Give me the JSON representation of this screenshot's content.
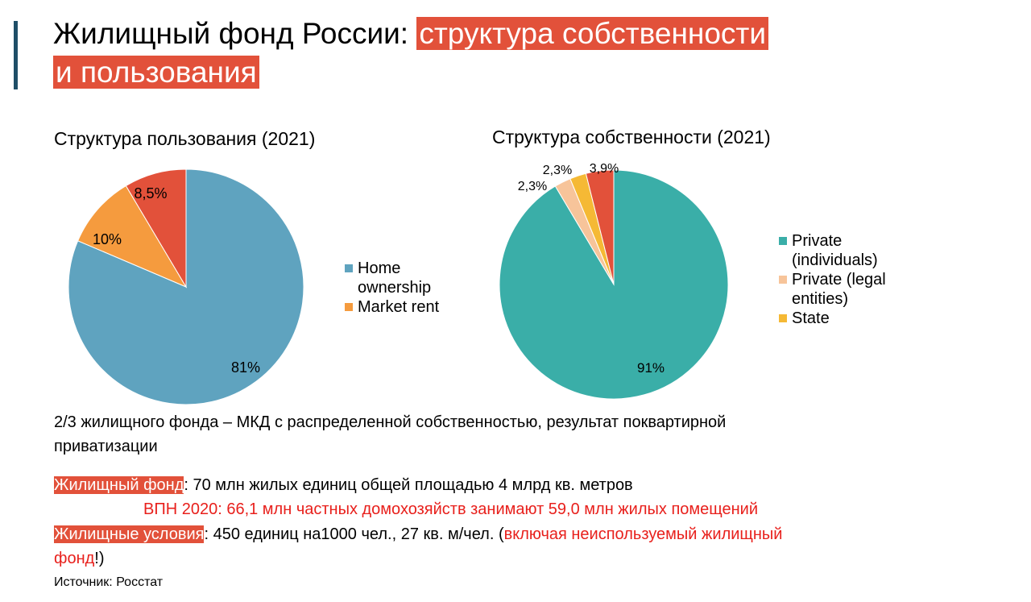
{
  "header": {
    "title_plain": "Жилищный фонд России: ",
    "title_highlight_1": "структура собственности",
    "title_highlight_2": "и пользования"
  },
  "colors": {
    "accent_bar": "#1f4e67",
    "highlight": "#e2513a",
    "red_text": "#e8201c"
  },
  "chart_data": [
    {
      "type": "pie",
      "title": "Структура пользования (2021)",
      "slices": [
        {
          "name": "Home ownership",
          "value": 81,
          "label": "81%",
          "color": "#5fa3bf"
        },
        {
          "name": "Market rent",
          "value": 10,
          "label": "10%",
          "color": "#f59b3e"
        },
        {
          "name": "",
          "value": 8.5,
          "label": "8,5%",
          "color": "#e2513a"
        }
      ],
      "legend": [
        "Home ownership",
        "Market rent"
      ],
      "legend_placement": "right"
    },
    {
      "type": "pie",
      "title": "Структура собственности (2021)",
      "slices": [
        {
          "name": "Private (individuals)",
          "value": 91,
          "label": "91%",
          "color": "#3aaea8"
        },
        {
          "name": "Private (legal entities)",
          "value": 2.3,
          "label": "2,3%",
          "color": "#f7c49a"
        },
        {
          "name": "State",
          "value": 2.3,
          "label": "2,3%",
          "color": "#f5b935"
        },
        {
          "name": "",
          "value": 3.9,
          "label": "3,9%",
          "color": "#e2513a"
        }
      ],
      "legend": [
        "Private (individuals)",
        "Private (legal entities)",
        "State"
      ],
      "legend_placement": "right"
    }
  ],
  "legend1": {
    "items": [
      {
        "line1": "Home",
        "line2": "ownership",
        "color": "#5fa3bf"
      },
      {
        "line1": "Market rent",
        "line2": "",
        "color": "#f59b3e"
      }
    ]
  },
  "legend2": {
    "items": [
      {
        "line1": "Private",
        "line2": "(individuals)",
        "color": "#3aaea8"
      },
      {
        "line1": "Private (legal",
        "line2": "entities)",
        "color": "#f7c49a"
      },
      {
        "line1": "State",
        "line2": "",
        "color": "#f5b935"
      }
    ]
  },
  "body": {
    "summary_line1": "2/3 жилищного фонда – МКД с распределенной собственностью, результат поквартирной",
    "summary_line2": "приватизации",
    "housing_stock_label": "Жилищный фонд",
    "housing_stock_text": ": 70 млн жилых единиц общей площадью 4 млрд кв. метров",
    "census_note": "ВПН 2020: 66,1 млн частных домохозяйств занимают 59,0 млн жилых помещений",
    "conditions_label": "Жилищные условия",
    "conditions_text": ": 450 единиц на1000 чел., 27 кв. м/чел. (",
    "conditions_red_1": "включая неиспользуемый жилищный",
    "conditions_red_2": "фонд",
    "conditions_end": "!)"
  },
  "source": "Источник: Росстат"
}
